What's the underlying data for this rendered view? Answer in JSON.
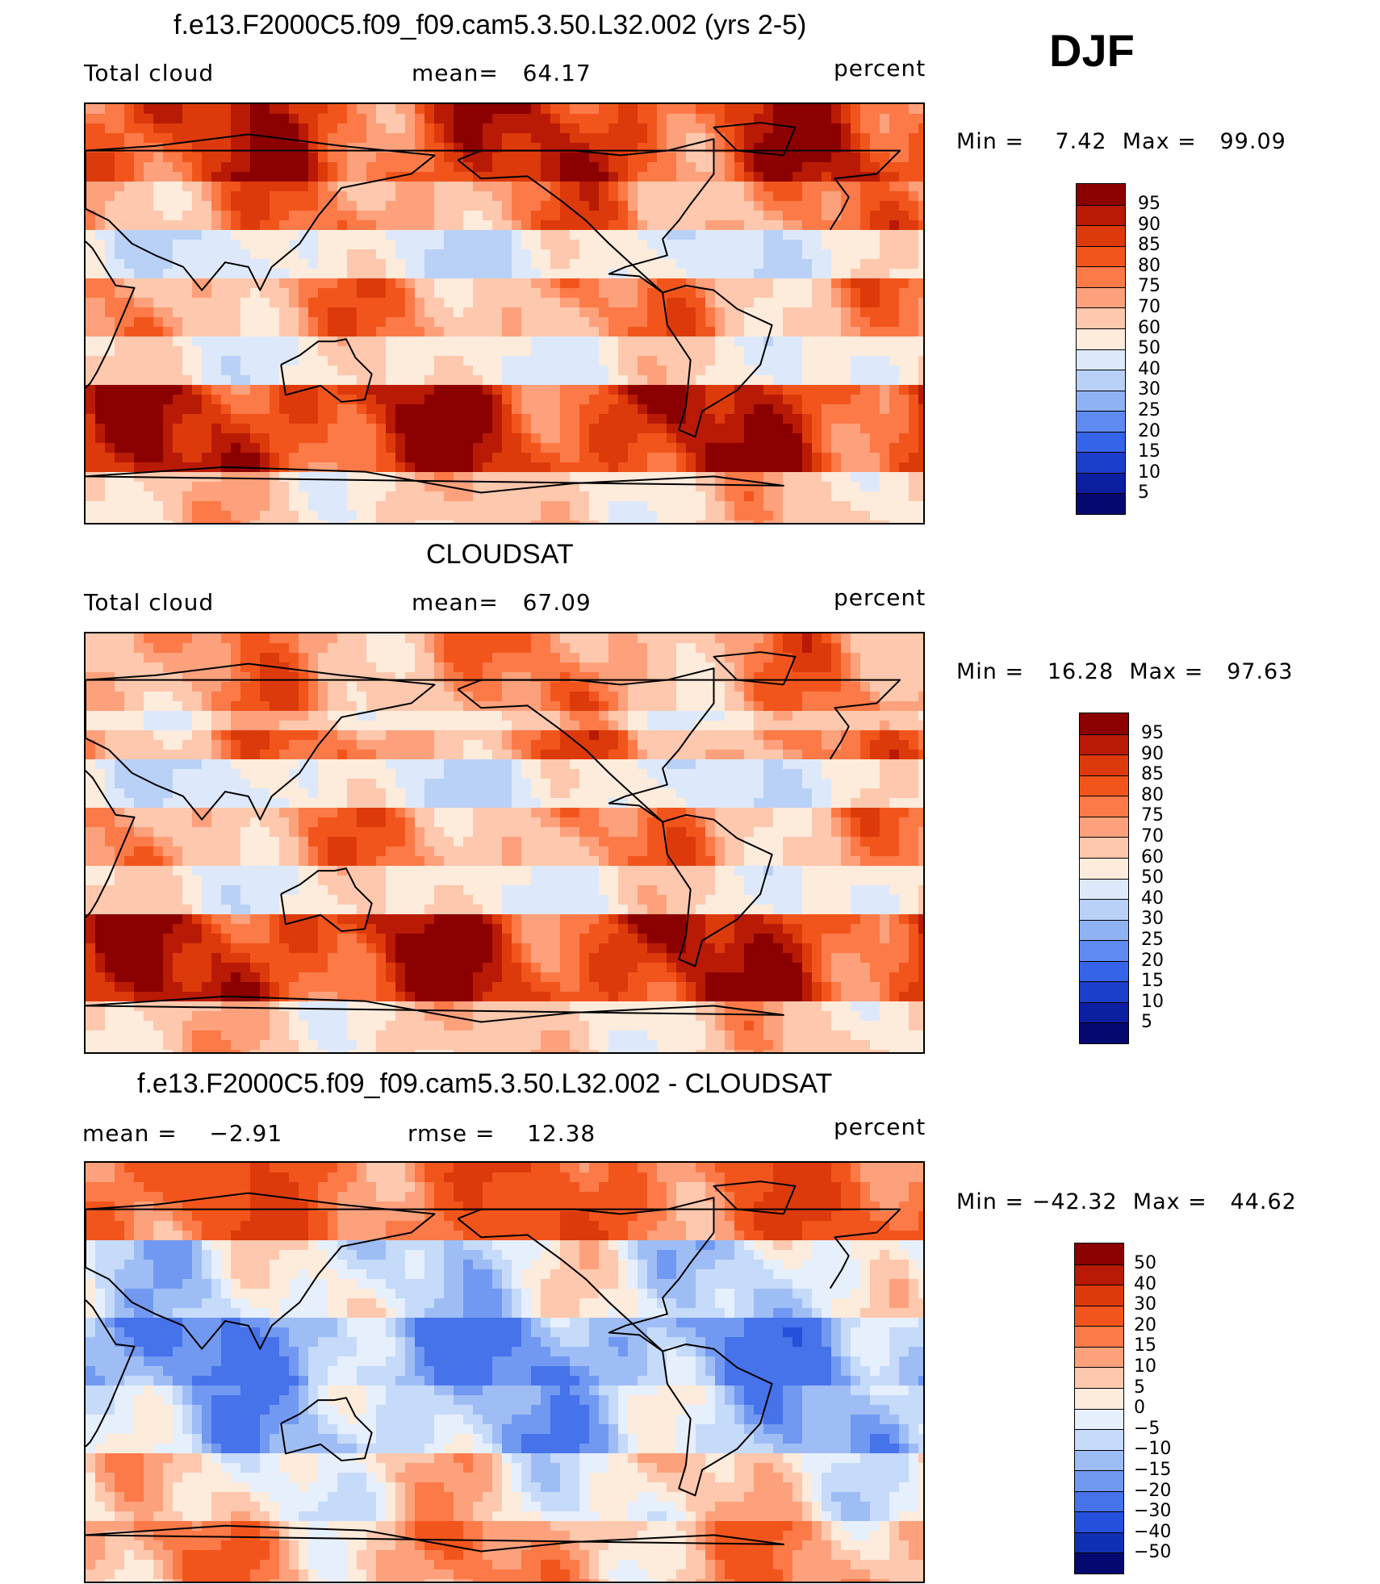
{
  "season": "DJF",
  "panels": [
    {
      "title": "f.e13.F2000C5.f09_f09.cam5.3.50.L32.002 (yrs 2-5)",
      "left_label": "Total cloud",
      "center_label": "mean=   64.17",
      "units": "percent",
      "minmax": "Min =    7.42  Max =   99.09",
      "colorbar_labels": [
        "95",
        "90",
        "85",
        "80",
        "75",
        "70",
        "60",
        "50",
        "40",
        "30",
        "25",
        "20",
        "15",
        "10",
        "5"
      ]
    },
    {
      "title": "CLOUDSAT",
      "left_label": "Total cloud",
      "center_label": "mean=   67.09",
      "units": "percent",
      "minmax": "Min =   16.28  Max =   97.63",
      "colorbar_labels": [
        "95",
        "90",
        "85",
        "80",
        "75",
        "70",
        "60",
        "50",
        "40",
        "30",
        "25",
        "20",
        "15",
        "10",
        "5"
      ]
    },
    {
      "title": "f.e13.F2000C5.f09_f09.cam5.3.50.L32.002 - CLOUDSAT",
      "left_label": "mean =    −2.91",
      "center_label": "rmse =    12.38",
      "units": "percent",
      "minmax": "Min = −42.32  Max =   44.62",
      "colorbar_labels": [
        "50",
        "40",
        "30",
        "20",
        "15",
        "10",
        "5",
        "0",
        "−5",
        "−10",
        "−15",
        "−20",
        "−30",
        "−40",
        "−50"
      ]
    }
  ],
  "colors": {
    "abs_palette": [
      "#8b0000",
      "#b81a06",
      "#dd3a0c",
      "#f2551c",
      "#fb7a48",
      "#fca17c",
      "#fdc8ad",
      "#fdebdc",
      "#dde9fa",
      "#b9d1f7",
      "#8fb2f3",
      "#5f8af0",
      "#3564e8",
      "#1b3fc8",
      "#0b1fa0",
      "#05086e"
    ],
    "diff_palette": [
      "#8b0000",
      "#b81a06",
      "#dd3a0c",
      "#f2551c",
      "#fb7a48",
      "#fca17c",
      "#fdc8ad",
      "#fdebdc",
      "#e6effc",
      "#c6dafa",
      "#9fbdf5",
      "#7199f1",
      "#4672ea",
      "#2450dc",
      "#1030b4",
      "#05086e"
    ]
  }
}
